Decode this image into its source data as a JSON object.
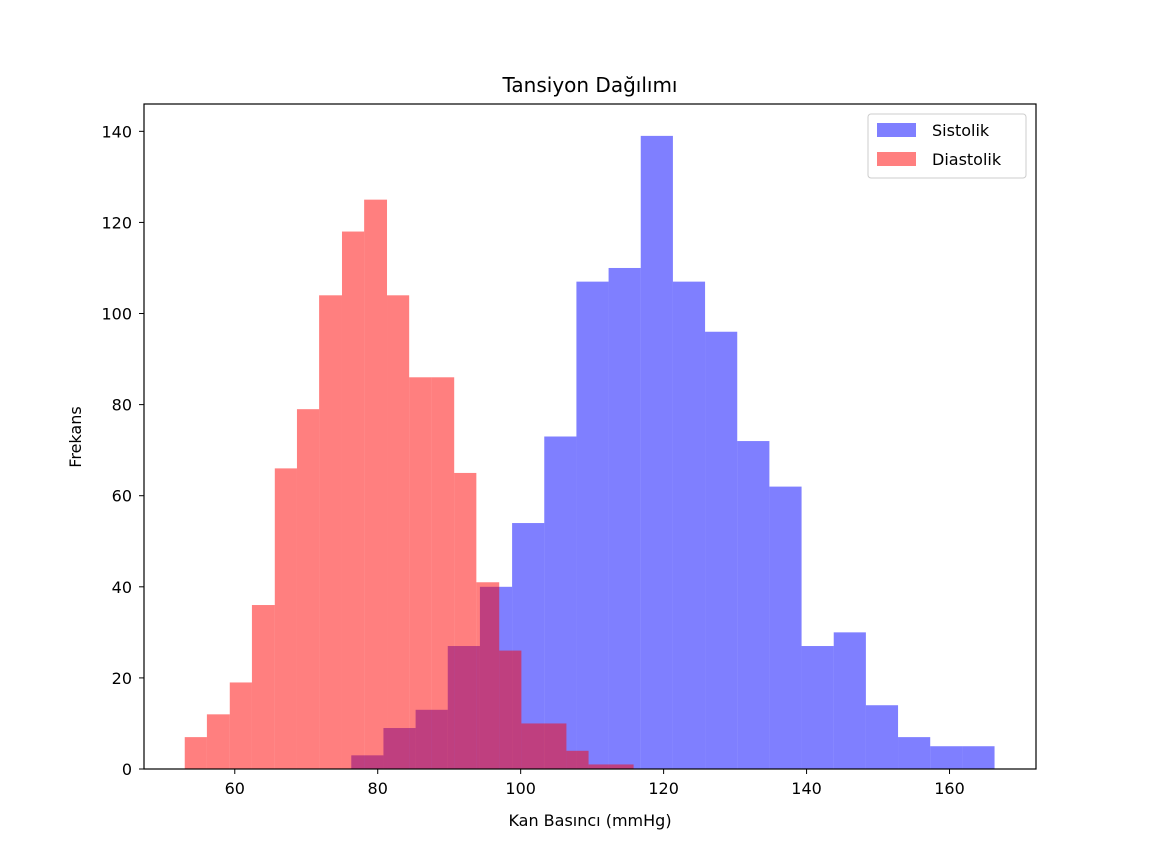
{
  "chart_data": {
    "type": "bar",
    "title": "Tansiyon Dağılımı",
    "xlabel": "Kan Basıncı (mmHg)",
    "ylabel": "Frekans",
    "xlim": [
      47.3,
      172.1
    ],
    "ylim": [
      0,
      146
    ],
    "xticks": [
      60,
      80,
      100,
      120,
      140,
      160
    ],
    "yticks": [
      0,
      20,
      40,
      60,
      80,
      100,
      120,
      140
    ],
    "grid": false,
    "legend_position": "top-right",
    "series": [
      {
        "name": "Sistolik",
        "color": "#0000ff",
        "opacity": 0.5,
        "bin_edges": [
          76.3,
          80.8,
          85.3,
          89.8,
          94.3,
          98.8,
          103.3,
          107.8,
          112.3,
          116.8,
          121.3,
          125.8,
          130.3,
          134.8,
          139.3,
          143.8,
          148.3,
          152.8,
          157.3,
          161.8,
          166.3
        ],
        "counts": [
          3,
          9,
          13,
          27,
          40,
          54,
          73,
          107,
          110,
          139,
          107,
          96,
          72,
          62,
          27,
          30,
          14,
          7,
          5,
          5
        ]
      },
      {
        "name": "Diastolik",
        "color": "#ff0000",
        "opacity": 0.5,
        "bin_edges": [
          53.0,
          56.1,
          59.3,
          62.4,
          65.6,
          68.7,
          71.8,
          75.0,
          78.1,
          81.3,
          84.4,
          87.5,
          90.7,
          93.8,
          97.0,
          100.1,
          103.2,
          106.4,
          109.5,
          112.7,
          115.8
        ],
        "counts": [
          7,
          12,
          19,
          36,
          66,
          79,
          104,
          118,
          125,
          104,
          86,
          86,
          65,
          41,
          26,
          10,
          10,
          4,
          1,
          1
        ]
      }
    ]
  }
}
